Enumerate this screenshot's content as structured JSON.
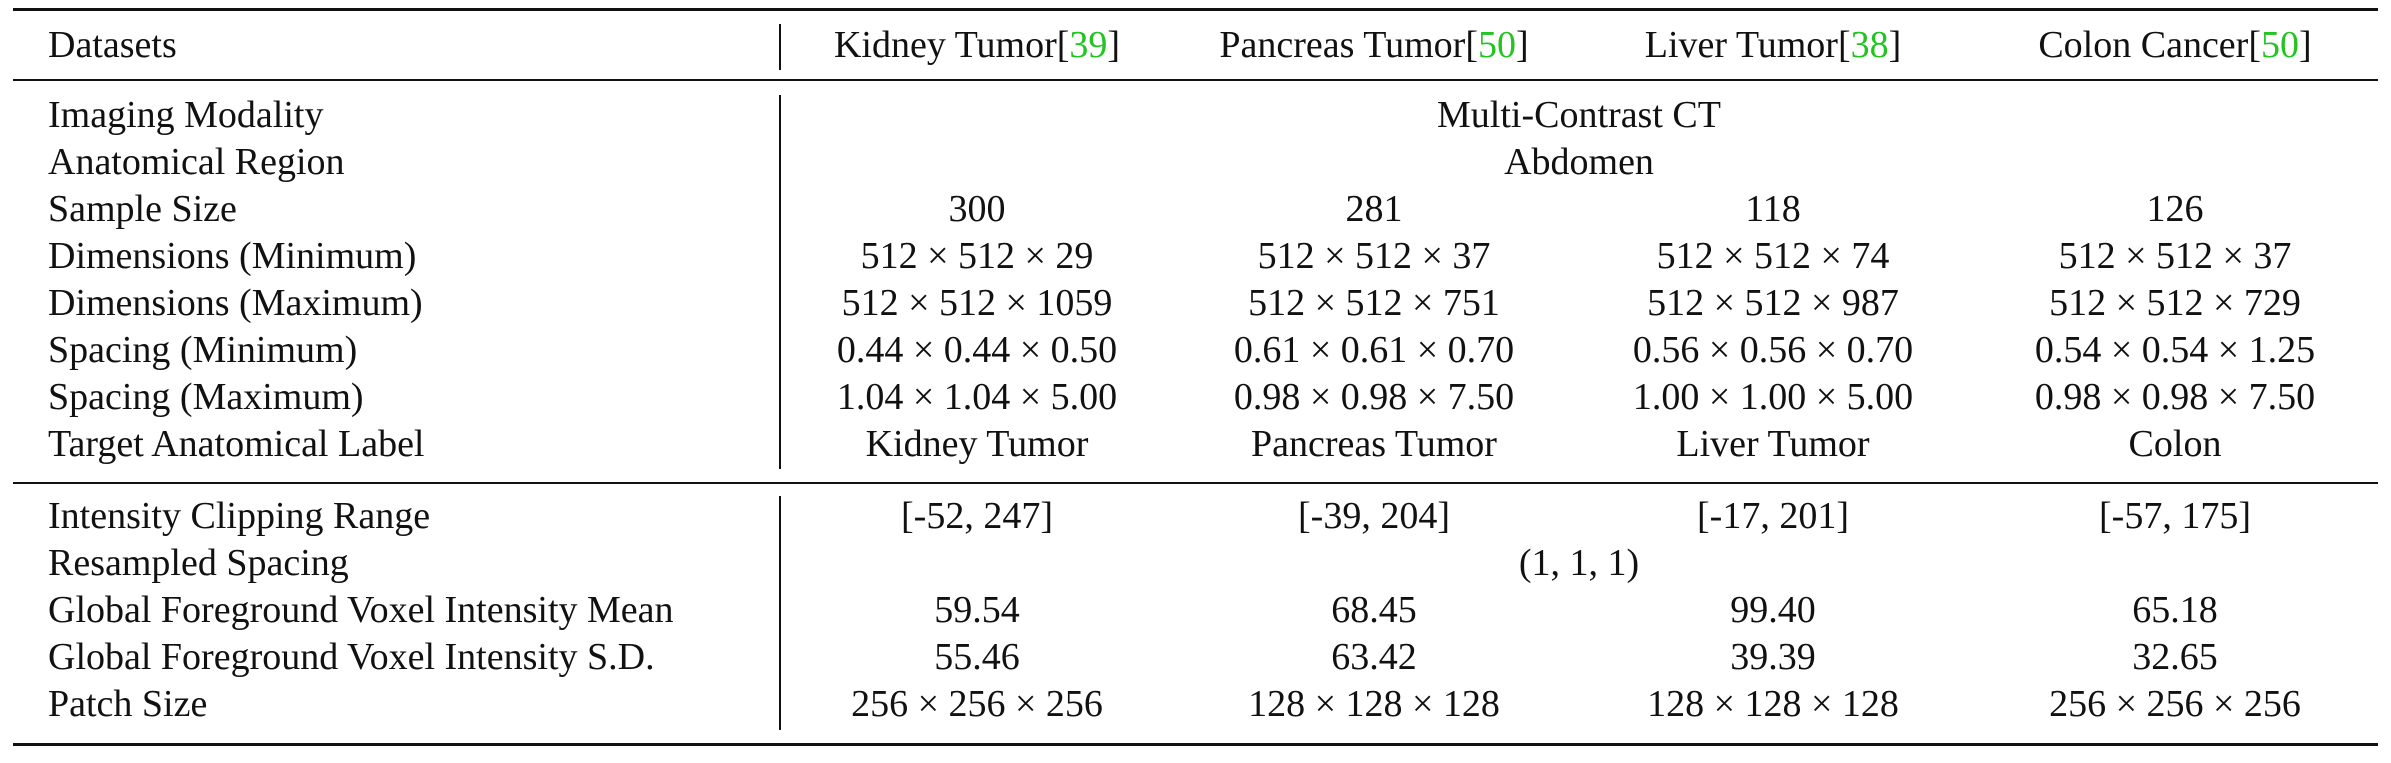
{
  "table": {
    "header": {
      "label": "Datasets",
      "columns": [
        {
          "name": "Kidney Tumor",
          "cite": "39"
        },
        {
          "name": "Pancreas Tumor",
          "cite": "50"
        },
        {
          "name": "Liver Tumor",
          "cite": "38"
        },
        {
          "name": "Colon Cancer",
          "cite": "50"
        }
      ]
    },
    "section1": {
      "imaging_modality": {
        "label": "Imaging Modality",
        "value": "Multi-Contrast CT"
      },
      "anatomical_region": {
        "label": "Anatomical Region",
        "value": "Abdomen"
      },
      "sample_size": {
        "label": "Sample Size",
        "values": [
          "300",
          "281",
          "118",
          "126"
        ]
      },
      "dimensions_min": {
        "label": "Dimensions (Minimum)",
        "values": [
          "512 × 512 × 29",
          "512 × 512 × 37",
          "512 × 512 × 74",
          "512 × 512 × 37"
        ]
      },
      "dimensions_max": {
        "label": "Dimensions (Maximum)",
        "values": [
          "512 × 512 × 1059",
          "512 × 512 × 751",
          "512 × 512 × 987",
          "512 × 512 × 729"
        ]
      },
      "spacing_min": {
        "label": "Spacing (Minimum)",
        "values": [
          "0.44 × 0.44 × 0.50",
          "0.61 × 0.61 × 0.70",
          "0.56 × 0.56 × 0.70",
          "0.54 × 0.54 × 1.25"
        ]
      },
      "spacing_max": {
        "label": "Spacing (Maximum)",
        "values": [
          "1.04 × 1.04 × 5.00",
          "0.98 × 0.98 × 7.50",
          "1.00 × 1.00 × 5.00",
          "0.98 × 0.98 × 7.50"
        ]
      },
      "target_label": {
        "label": "Target Anatomical Label",
        "values": [
          "Kidney Tumor",
          "Pancreas Tumor",
          "Liver Tumor",
          "Colon"
        ]
      }
    },
    "section2": {
      "clipping_range": {
        "label": "Intensity Clipping Range",
        "values": [
          "[-52, 247]",
          "[-39, 204]",
          "[-17, 201]",
          "[-57, 175]"
        ]
      },
      "resampled_spacing": {
        "label": "Resampled Spacing",
        "value": "(1, 1, 1)"
      },
      "intensity_mean": {
        "label": "Global Foreground Voxel Intensity Mean",
        "values": [
          "59.54",
          "68.45",
          "99.40",
          "65.18"
        ]
      },
      "intensity_sd": {
        "label": "Global Foreground Voxel Intensity S.D.",
        "values": [
          "55.46",
          "63.42",
          "39.39",
          "32.65"
        ]
      },
      "patch_size": {
        "label": "Patch Size",
        "values": [
          "256 × 256 × 256",
          "128 × 128 × 128",
          "128 × 128 × 128",
          "256 × 256 × 256"
        ]
      }
    }
  }
}
